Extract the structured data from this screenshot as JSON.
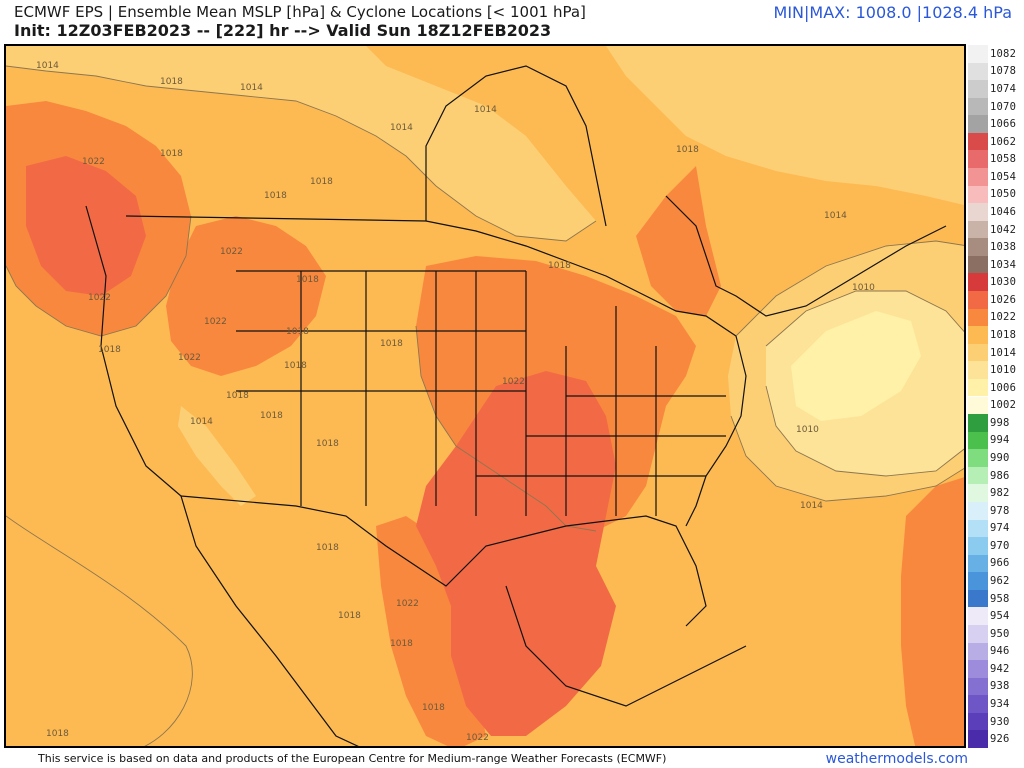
{
  "header": {
    "title": "ECMWF EPS | Ensemble Mean MSLP [hPa] & Cyclone Locations [< 1001 hPa]",
    "subtitle": "Init: 12Z03FEB2023 -- [222] hr --> Valid Sun 18Z12FEB2023",
    "minmax": "MIN|MAX: 1008.0 |1028.4 hPa"
  },
  "map": {
    "contour_labels": {
      "l1": "1014",
      "l2": "1014",
      "l3": "1014",
      "l4": "1014",
      "l5": "1022",
      "l6": "1018",
      "l7": "1018",
      "l8": "1018",
      "l9": "1022",
      "l10": "1022",
      "l11": "1022",
      "l12": "1018",
      "l13": "1018",
      "l14": "1022",
      "l15": "1018",
      "l16": "1018",
      "l17": "1018",
      "l18": "1014",
      "l19": "1018",
      "l20": "1018",
      "l21": "1018",
      "l22": "1018",
      "l23": "1022",
      "l24": "1018",
      "l25": "1018",
      "l26": "1014",
      "l27": "1010",
      "l28": "1010",
      "l29": "1014",
      "l30": "1018",
      "l31": "1022",
      "l32": "1018",
      "l33": "1018",
      "l34": "1022",
      "l35": "1018",
      "l36": "1018"
    },
    "colors": {
      "p1006": "#fff1a8",
      "p1010": "#fde398",
      "p1014": "#fdcf74",
      "p1018": "#fdba53",
      "p1022": "#f9883f",
      "p1026": "#f26a45",
      "border": "#111111",
      "contour": "#8c7650"
    }
  },
  "colorbar": {
    "levels": [
      {
        "label": "1082",
        "color": "#f2f2f2"
      },
      {
        "label": "1078",
        "color": "#e0e0e0"
      },
      {
        "label": "1074",
        "color": "#cccccc"
      },
      {
        "label": "1070",
        "color": "#b8b8b8"
      },
      {
        "label": "1066",
        "color": "#a3a3a3"
      },
      {
        "label": "1062",
        "color": "#d94a4a"
      },
      {
        "label": "1058",
        "color": "#e86a6a"
      },
      {
        "label": "1054",
        "color": "#f29494"
      },
      {
        "label": "1050",
        "color": "#f8bcbc"
      },
      {
        "label": "1046",
        "color": "#ead6d0"
      },
      {
        "label": "1042",
        "color": "#c9b3a8"
      },
      {
        "label": "1038",
        "color": "#a68d80"
      },
      {
        "label": "1034",
        "color": "#8a6f62"
      },
      {
        "label": "1030",
        "color": "#d63a3a"
      },
      {
        "label": "1026",
        "color": "#f26a45"
      },
      {
        "label": "1022",
        "color": "#f9883f"
      },
      {
        "label": "1018",
        "color": "#fdba53"
      },
      {
        "label": "1014",
        "color": "#fdcf74"
      },
      {
        "label": "1010",
        "color": "#fde398"
      },
      {
        "label": "1006",
        "color": "#fff1a8"
      },
      {
        "label": "1002",
        "color": "#fffbd9"
      },
      {
        "label": "998",
        "color": "#2e9e3e"
      },
      {
        "label": "994",
        "color": "#4cc04c"
      },
      {
        "label": "990",
        "color": "#7fdc7f"
      },
      {
        "label": "986",
        "color": "#b6efb6"
      },
      {
        "label": "982",
        "color": "#dff8df"
      },
      {
        "label": "978",
        "color": "#d9f0fb"
      },
      {
        "label": "974",
        "color": "#b3e0f7"
      },
      {
        "label": "970",
        "color": "#8ccbf0"
      },
      {
        "label": "966",
        "color": "#66b0e6"
      },
      {
        "label": "962",
        "color": "#4a94db"
      },
      {
        "label": "958",
        "color": "#3a78cc"
      },
      {
        "label": "954",
        "color": "#eeeaf8"
      },
      {
        "label": "950",
        "color": "#d8d0f0"
      },
      {
        "label": "946",
        "color": "#b9ade6"
      },
      {
        "label": "942",
        "color": "#9d8cdb"
      },
      {
        "label": "938",
        "color": "#8470d1"
      },
      {
        "label": "934",
        "color": "#6e56c6"
      },
      {
        "label": "930",
        "color": "#5b3fba"
      },
      {
        "label": "926",
        "color": "#4a2caa"
      }
    ]
  },
  "footer": {
    "credit": "This service is based on data and products of the European Centre for Medium-range Weather Forecasts (ECMWF)",
    "brand": "weathermodels.com"
  }
}
